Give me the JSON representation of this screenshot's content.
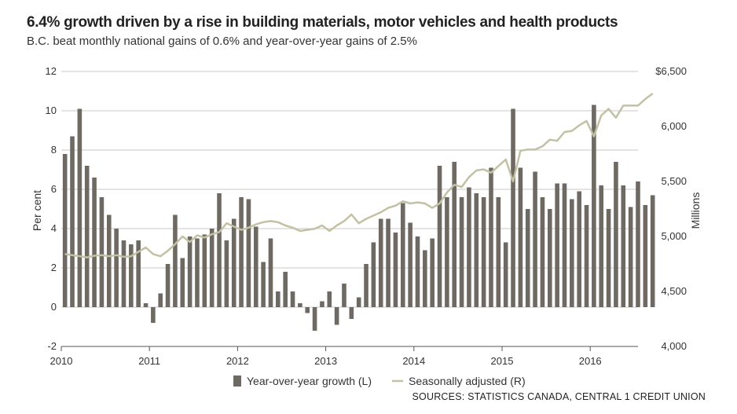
{
  "header": {
    "title": "6.4% growth driven by a rise in building materials, motor vehicles and health products",
    "subtitle": "B.C. beat monthly national gains of 0.6% and year-over-year gains of 2.5%",
    "source": "SOURCES: STATISTICS CANADA, CENTRAL 1 CREDIT UNION"
  },
  "colors": {
    "bars": "#6e6962",
    "line": "#c3c1a3",
    "grid": "#c8c8c8",
    "baseline": "#555555"
  },
  "chart_data": {
    "type": "bar+line",
    "title": "6.4% growth driven by a rise in building materials, motor vehicles and health products",
    "subtitle": "B.C. beat monthly national gains of 0.6% and year-over-year gains of 2.5%",
    "x_start_year": 2010,
    "x_labels": [
      "2010",
      "2011",
      "2012",
      "2013",
      "2014",
      "2015",
      "2016"
    ],
    "ylabel_left": "Per cent",
    "ylabel_right": "Millions",
    "ylim_left": [
      -2,
      12
    ],
    "yticks_left": [
      "-2",
      "0",
      "2",
      "4",
      "6",
      "8",
      "10",
      "12"
    ],
    "ylim_right": [
      4000,
      6500
    ],
    "yticks_right": [
      "4,000",
      "4,500",
      "5,000",
      "5,500",
      "6,000",
      "$6,500"
    ],
    "grid": true,
    "legend_position": "bottom-center",
    "series": [
      {
        "name": "Year-over-year growth (L)",
        "axis": "left",
        "kind": "bar",
        "values": [
          7.8,
          8.7,
          10.1,
          7.2,
          6.6,
          5.6,
          4.7,
          4.0,
          3.4,
          3.2,
          3.4,
          0.2,
          -0.8,
          0.7,
          2.2,
          4.7,
          2.5,
          3.6,
          3.5,
          3.7,
          4.0,
          5.8,
          3.4,
          4.5,
          5.6,
          5.5,
          4.1,
          2.3,
          3.5,
          0.8,
          1.8,
          0.8,
          0.2,
          -0.3,
          -1.2,
          0.3,
          0.8,
          -0.9,
          1.2,
          -0.6,
          0.5,
          2.2,
          3.3,
          4.5,
          4.5,
          3.8,
          5.3,
          4.3,
          3.6,
          2.9,
          3.5,
          7.2,
          5.6,
          7.4,
          5.6,
          6.1,
          5.8,
          5.6,
          7.1,
          5.6,
          3.3,
          10.1,
          7.1,
          5.0,
          6.9,
          5.6,
          5.0,
          6.3,
          6.3,
          5.5,
          5.9,
          5.2,
          10.3,
          6.2,
          5.0,
          7.4,
          6.2,
          5.1,
          6.4,
          5.2,
          5.7
        ]
      },
      {
        "name": "Seasonally adjusted (R)",
        "axis": "right",
        "kind": "line",
        "values": [
          4840,
          4830,
          4820,
          4810,
          4825,
          4830,
          4820,
          4830,
          4815,
          4820,
          4860,
          4900,
          4840,
          4820,
          4870,
          4930,
          5000,
          4950,
          5010,
          4990,
          5020,
          5040,
          5120,
          5090,
          5060,
          5080,
          5110,
          5130,
          5140,
          5130,
          5100,
          5080,
          5050,
          5060,
          5070,
          5100,
          5050,
          5100,
          5140,
          5200,
          5120,
          5160,
          5190,
          5220,
          5260,
          5280,
          5320,
          5300,
          5310,
          5300,
          5260,
          5300,
          5400,
          5470,
          5450,
          5540,
          5600,
          5610,
          5580,
          5640,
          5700,
          5500,
          5780,
          5790,
          5790,
          5820,
          5880,
          5870,
          5950,
          5960,
          6010,
          6050,
          5910,
          6100,
          6160,
          6080,
          6190,
          6190,
          6190,
          6250,
          6300
        ]
      }
    ]
  }
}
